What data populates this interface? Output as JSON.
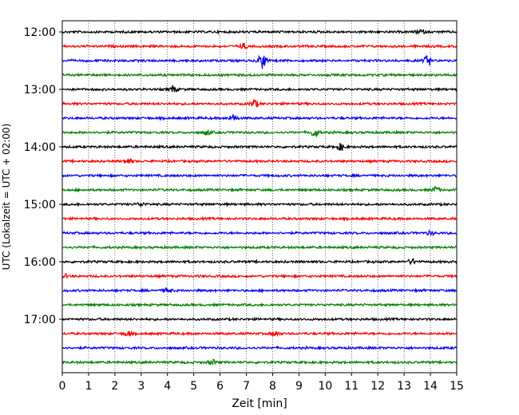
{
  "chart_data": {
    "type": "line",
    "title": "",
    "xlabel": "Zeit  [min]",
    "ylabel": "UTC (Lokalzeit = UTC + 02:00)",
    "xlim": [
      0,
      15
    ],
    "x_ticks": [
      "0",
      "1",
      "2",
      "3",
      "4",
      "5",
      "6",
      "7",
      "8",
      "9",
      "10",
      "11",
      "12",
      "13",
      "14",
      "15"
    ],
    "y_ticks": [
      "12:00",
      "13:00",
      "14:00",
      "15:00",
      "16:00",
      "17:00"
    ],
    "grid": "vertical dotted",
    "trace_colors": [
      "#000000",
      "#ff0000",
      "#0000ff",
      "#008000"
    ],
    "traces": [
      {
        "start": "12:00",
        "color": "#000000",
        "events": [
          {
            "t": 13.6,
            "amp": 3
          }
        ]
      },
      {
        "start": "12:15",
        "color": "#ff0000",
        "events": [
          {
            "t": 6.9,
            "amp": 3
          }
        ]
      },
      {
        "start": "12:30",
        "color": "#0000ff",
        "events": [
          {
            "t": 7.6,
            "amp": 10
          },
          {
            "t": 13.9,
            "amp": 6
          }
        ]
      },
      {
        "start": "12:45",
        "color": "#008000",
        "events": []
      },
      {
        "start": "13:00",
        "color": "#000000",
        "events": [
          {
            "t": 4.2,
            "amp": 4
          }
        ]
      },
      {
        "start": "13:15",
        "color": "#ff0000",
        "events": [
          {
            "t": 7.3,
            "amp": 5
          }
        ]
      },
      {
        "start": "13:30",
        "color": "#0000ff",
        "events": [
          {
            "t": 6.5,
            "amp": 4
          }
        ]
      },
      {
        "start": "13:45",
        "color": "#008000",
        "events": [
          {
            "t": 9.6,
            "amp": 5
          },
          {
            "t": 5.5,
            "amp": 3
          }
        ]
      },
      {
        "start": "14:00",
        "color": "#000000",
        "events": [
          {
            "t": 10.6,
            "amp": 4
          }
        ]
      },
      {
        "start": "14:15",
        "color": "#ff0000",
        "events": [
          {
            "t": 2.5,
            "amp": 3
          }
        ]
      },
      {
        "start": "14:30",
        "color": "#0000ff",
        "events": []
      },
      {
        "start": "14:45",
        "color": "#008000",
        "events": [
          {
            "t": 14.2,
            "amp": 3
          }
        ]
      },
      {
        "start": "15:00",
        "color": "#000000",
        "events": [
          {
            "t": 3.0,
            "amp": 2
          }
        ]
      },
      {
        "start": "15:15",
        "color": "#ff0000",
        "events": []
      },
      {
        "start": "15:30",
        "color": "#0000ff",
        "events": [
          {
            "t": 14.0,
            "amp": 2
          }
        ]
      },
      {
        "start": "15:45",
        "color": "#008000",
        "events": []
      },
      {
        "start": "16:00",
        "color": "#000000",
        "events": [
          {
            "t": 13.3,
            "amp": 3
          }
        ]
      },
      {
        "start": "16:15",
        "color": "#ff0000",
        "events": [
          {
            "t": 0.1,
            "amp": 2
          }
        ]
      },
      {
        "start": "16:30",
        "color": "#0000ff",
        "events": [
          {
            "t": 4.0,
            "amp": 3
          }
        ]
      },
      {
        "start": "16:45",
        "color": "#008000",
        "events": []
      },
      {
        "start": "17:00",
        "color": "#000000",
        "events": []
      },
      {
        "start": "17:15",
        "color": "#ff0000",
        "events": [
          {
            "t": 2.5,
            "amp": 3
          },
          {
            "t": 8.1,
            "amp": 3
          }
        ]
      },
      {
        "start": "17:30",
        "color": "#0000ff",
        "events": []
      },
      {
        "start": "17:45",
        "color": "#008000",
        "events": [
          {
            "t": 5.7,
            "amp": 3
          }
        ]
      }
    ]
  }
}
